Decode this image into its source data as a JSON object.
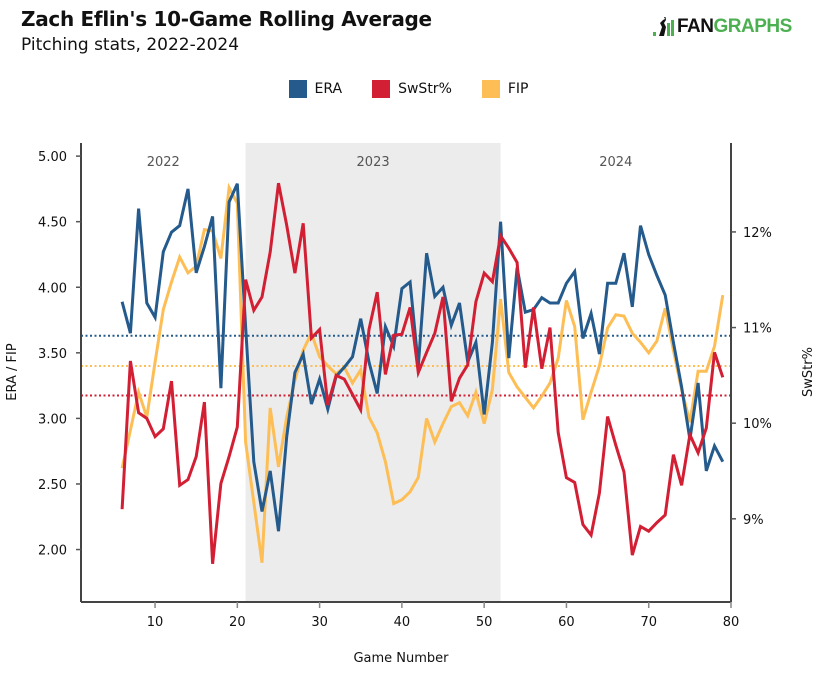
{
  "header": {
    "title": "Zach Eflin's 10-Game Rolling Average",
    "subtitle": "Pitching stats, 2022-2024",
    "logo_left": "FAN",
    "logo_right": "GRAPHS"
  },
  "colors": {
    "ERA": "#245a8c",
    "SwStr%": "#d21f34",
    "FIP": "#fdbe56",
    "shade": "#ececec",
    "axis": "#444444",
    "logo_green": "#4caf50"
  },
  "chart_data": {
    "type": "line",
    "title": "Zach Eflin's 10-Game Rolling Average",
    "subtitle": "Pitching stats, 2022-2024",
    "xlabel": "Game Number",
    "ylabel": "ERA / FIP",
    "y2label": "SwStr%",
    "xlim": [
      1,
      80
    ],
    "ylim": [
      1.6,
      5.1
    ],
    "y2lim": [
      8.13,
      12.93
    ],
    "xticks": [
      10,
      20,
      30,
      40,
      50,
      60,
      70,
      80
    ],
    "xtick_labels": [
      "10",
      "20",
      "30",
      "40",
      "50",
      "60",
      "70",
      "80"
    ],
    "yticks": [
      2.0,
      2.5,
      3.0,
      3.5,
      4.0,
      4.5,
      5.0
    ],
    "ytick_labels": [
      "2.00",
      "2.50",
      "3.00",
      "3.50",
      "4.00",
      "4.50",
      "5.00"
    ],
    "y2ticks": [
      9,
      10,
      11,
      12
    ],
    "y2tick_labels": [
      "9%",
      "10%",
      "11%",
      "12%"
    ],
    "grid": false,
    "legend": {
      "position": "top-center",
      "entries": [
        "ERA",
        "SwStr%",
        "FIP"
      ]
    },
    "seasons": [
      {
        "label": "2022",
        "start": 1,
        "end": 21,
        "shaded": false
      },
      {
        "label": "2023",
        "start": 21,
        "end": 52,
        "shaded": true
      },
      {
        "label": "2024",
        "start": 52,
        "end": 80,
        "shaded": false
      }
    ],
    "reference_lines": [
      {
        "series": "ERA",
        "axis": "left",
        "value": 3.63,
        "style": "dotted"
      },
      {
        "series": "FIP",
        "axis": "left",
        "value": 3.4,
        "style": "dotted"
      },
      {
        "series": "SwStr%",
        "axis": "right",
        "value": 10.29,
        "style": "dotted"
      }
    ],
    "x": [
      6,
      7,
      8,
      9,
      10,
      11,
      12,
      13,
      14,
      15,
      16,
      17,
      18,
      19,
      20,
      21,
      22,
      23,
      24,
      25,
      26,
      27,
      28,
      29,
      30,
      31,
      32,
      33,
      34,
      35,
      36,
      37,
      38,
      39,
      40,
      41,
      42,
      43,
      44,
      45,
      46,
      47,
      48,
      49,
      50,
      51,
      52,
      53,
      54,
      55,
      56,
      57,
      58,
      59,
      60,
      61,
      62,
      63,
      64,
      65,
      66,
      67,
      68,
      69,
      70,
      71,
      72,
      73,
      74,
      75,
      76,
      77,
      78,
      79
    ],
    "series": [
      {
        "name": "ERA",
        "axis": "left",
        "values": [
          3.89,
          3.65,
          4.6,
          3.88,
          3.77,
          4.27,
          4.42,
          4.47,
          4.75,
          4.11,
          4.31,
          4.54,
          3.23,
          4.65,
          4.79,
          3.7,
          2.67,
          2.29,
          2.6,
          2.14,
          2.86,
          3.35,
          3.49,
          3.11,
          3.3,
          3.07,
          3.32,
          3.39,
          3.47,
          3.76,
          3.43,
          3.19,
          3.7,
          3.55,
          3.99,
          4.04,
          3.4,
          4.26,
          3.93,
          4.0,
          3.71,
          3.88,
          3.43,
          3.58,
          3.03,
          3.58,
          4.5,
          3.46,
          4.15,
          3.81,
          3.83,
          3.92,
          3.88,
          3.88,
          4.03,
          4.12,
          3.61,
          3.8,
          3.49,
          4.03,
          4.03,
          4.26,
          3.85,
          4.47,
          4.25,
          4.09,
          3.94,
          3.58,
          3.24,
          2.84,
          3.27,
          2.6,
          2.79,
          2.67
        ]
      },
      {
        "name": "SwStr%",
        "axis": "right",
        "values": [
          9.1,
          10.65,
          10.11,
          10.05,
          9.86,
          9.94,
          10.44,
          9.35,
          9.41,
          9.65,
          10.22,
          8.53,
          9.37,
          9.65,
          9.96,
          11.5,
          11.18,
          11.32,
          11.79,
          12.51,
          12.07,
          11.57,
          12.09,
          10.89,
          10.98,
          10.19,
          10.5,
          10.46,
          10.3,
          10.14,
          10.98,
          11.37,
          10.51,
          10.92,
          10.93,
          11.21,
          10.53,
          10.74,
          10.94,
          11.32,
          10.23,
          10.47,
          10.61,
          11.27,
          11.57,
          11.48,
          11.96,
          11.83,
          11.68,
          10.58,
          11.21,
          10.57,
          11.0,
          9.9,
          9.43,
          9.38,
          8.94,
          8.83,
          9.27,
          10.07,
          9.77,
          9.49,
          8.62,
          8.92,
          8.87,
          8.96,
          9.04,
          9.67,
          9.35,
          9.88,
          9.69,
          9.95,
          10.74,
          10.48
        ]
      },
      {
        "name": "FIP",
        "axis": "left",
        "values": [
          2.62,
          2.91,
          3.2,
          3.01,
          3.43,
          3.83,
          4.04,
          4.23,
          4.11,
          4.16,
          4.44,
          4.43,
          4.22,
          4.76,
          4.64,
          2.82,
          2.36,
          1.9,
          3.08,
          2.63,
          3.01,
          3.29,
          3.52,
          3.65,
          3.47,
          3.4,
          3.34,
          3.39,
          3.27,
          3.37,
          3.01,
          2.89,
          2.67,
          2.35,
          2.38,
          2.44,
          2.55,
          3.0,
          2.82,
          2.96,
          3.09,
          3.12,
          3.02,
          3.2,
          2.96,
          3.22,
          3.91,
          3.35,
          3.24,
          3.16,
          3.08,
          3.17,
          3.27,
          3.46,
          3.9,
          3.7,
          2.99,
          3.2,
          3.4,
          3.69,
          3.79,
          3.78,
          3.65,
          3.58,
          3.5,
          3.59,
          3.84,
          3.52,
          3.22,
          2.97,
          3.36,
          3.36,
          3.55,
          3.94
        ]
      }
    ]
  }
}
